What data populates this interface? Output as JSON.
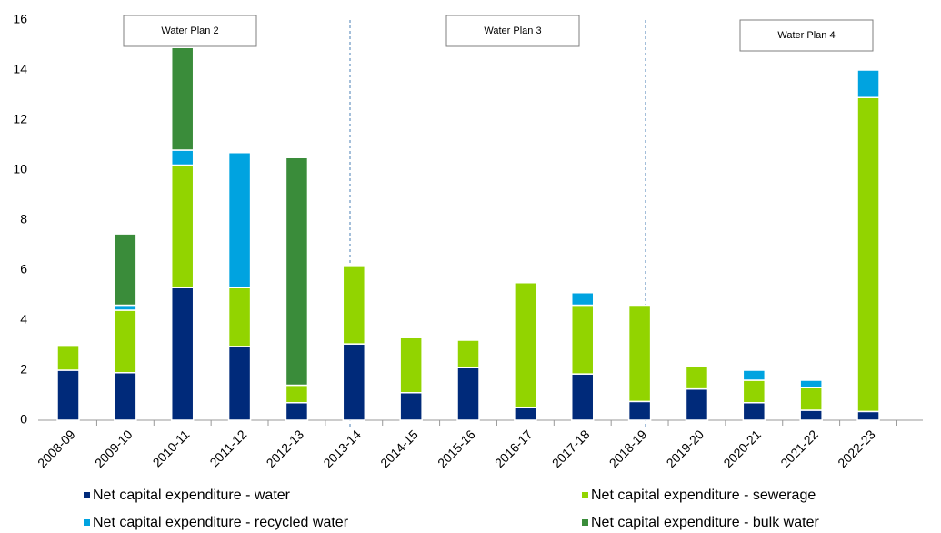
{
  "chart_data": {
    "type": "stacked-bar",
    "categories": [
      "2008-09",
      "2009-10",
      "2010-11",
      "2011-12",
      "2012-13",
      "2013-14",
      "2014-15",
      "2015-16",
      "2016-17",
      "2017-18",
      "2018-19",
      "2019-20",
      "2020-21",
      "2021-22",
      "2022-23"
    ],
    "series": [
      {
        "name": "Net capital expenditure - water",
        "color": "#002a7a",
        "values": [
          2.0,
          1.9,
          5.3,
          2.95,
          0.7,
          3.05,
          1.1,
          2.1,
          0.5,
          1.85,
          0.75,
          1.25,
          0.7,
          0.4,
          0.35
        ]
      },
      {
        "name": "Net capital expenditure - sewerage",
        "color": "#92d400",
        "values": [
          1.0,
          2.5,
          4.9,
          2.35,
          0.7,
          3.1,
          2.2,
          1.1,
          5.0,
          2.75,
          3.85,
          0.9,
          0.9,
          0.9,
          12.55
        ]
      },
      {
        "name": "Net capital expenditure - recycled water",
        "color": "#00a3e0",
        "values": [
          0.05,
          0.2,
          0.6,
          5.4,
          0,
          0,
          0,
          0,
          0,
          0.5,
          0,
          0,
          0.4,
          0.3,
          1.1
        ]
      },
      {
        "name": "Net capital expenditure - bulk water",
        "color": "#3a8c3a",
        "values": [
          0,
          2.85,
          4.1,
          0,
          9.1,
          0,
          0,
          0,
          0,
          0,
          0,
          0,
          0,
          0,
          0
        ]
      }
    ],
    "annotations": [
      "Water Plan 2",
      "Water Plan 3",
      "Water Plan 4"
    ],
    "ylim": [
      0,
      16
    ],
    "yticks": [
      0,
      2,
      4,
      6,
      8,
      10,
      12,
      14,
      16
    ],
    "grid": false
  }
}
